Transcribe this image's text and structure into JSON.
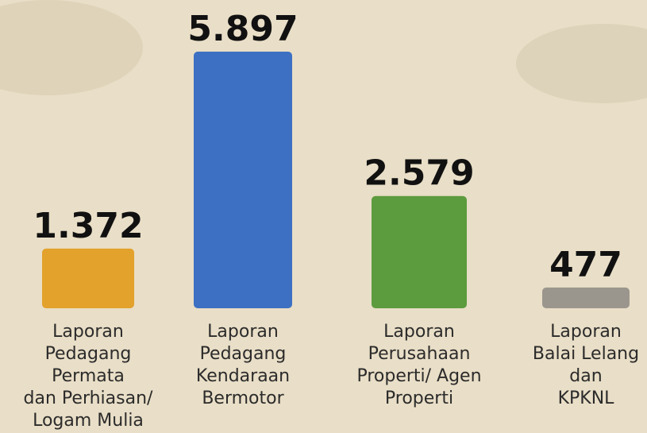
{
  "chart_data": {
    "type": "bar",
    "categories": [
      "Laporan\nPedagang\nPermata\ndan Perhiasan/\nLogam Mulia",
      "Laporan\nPedagang\nKendaraan\nBermotor",
      "Laporan\nPerusahaan\nProperti/ Agen\nProperti",
      "Laporan\nBalai Lelang\ndan\nKPKNL"
    ],
    "values": [
      1372,
      5897,
      2579,
      477
    ],
    "value_labels": [
      "1.372",
      "5.897",
      "2.579",
      "477"
    ],
    "colors": [
      "#e3a22c",
      "#3d70c2",
      "#5c9b3e",
      "#9b968d"
    ]
  }
}
